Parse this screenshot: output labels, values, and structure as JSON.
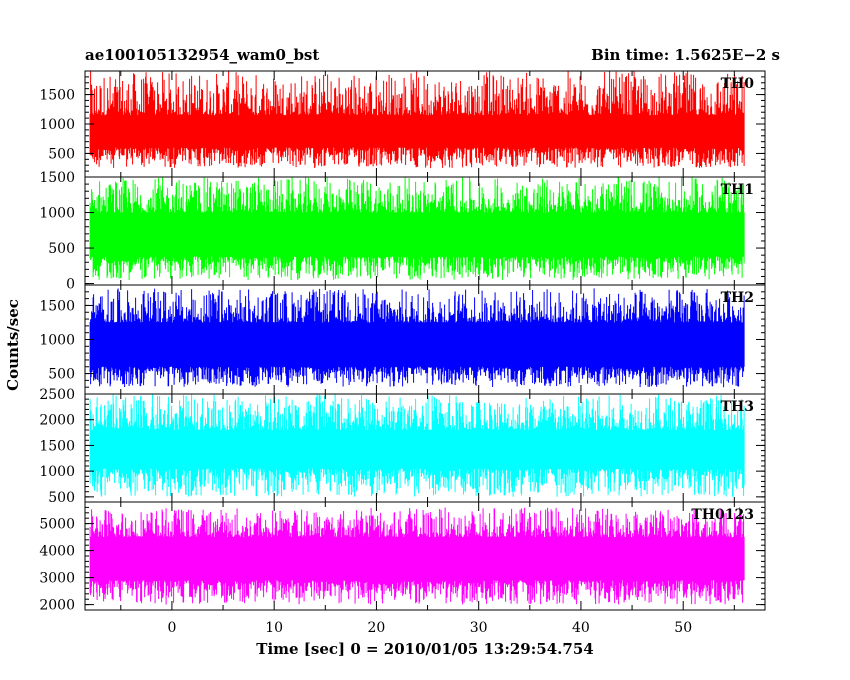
{
  "header": {
    "title_left": "ae100105132954_wam0_bst",
    "title_right": "Bin time: 1.5625E−2 s"
  },
  "chart_data": {
    "type": "line",
    "x": {
      "label": "Time [sec] 0 = 2010/01/05 13:29:54.754",
      "range": [
        -8.5,
        58
      ],
      "data_range": [
        -8,
        56
      ],
      "ticks": [
        0,
        10,
        20,
        30,
        40,
        50
      ],
      "tick_labels": [
        "0",
        "10",
        "20",
        "30",
        "40",
        "50"
      ]
    },
    "ylabel": "Counts/sec",
    "grid": false,
    "panels": [
      {
        "name": "TH0",
        "color": "#ff0000",
        "ylim": [
          100,
          1900
        ],
        "ticks": [
          500,
          1000,
          1500
        ],
        "tick_labels": [
          "500",
          "1000",
          "1500"
        ],
        "typical_low": 600,
        "typical_high": 1150,
        "min": 250,
        "max": 1900
      },
      {
        "name": "TH1",
        "color": "#00ff00",
        "ylim": [
          -20,
          1500
        ],
        "ticks": [
          0,
          500,
          1000,
          1500
        ],
        "tick_labels": [
          "0",
          "500",
          "1000",
          "1500"
        ],
        "typical_low": 380,
        "typical_high": 1000,
        "min": 50,
        "max": 1500
      },
      {
        "name": "TH2",
        "color": "#0000ff",
        "ylim": [
          200,
          1800
        ],
        "ticks": [
          500,
          1000,
          1500
        ],
        "tick_labels": [
          "500",
          "1000",
          "1500"
        ],
        "typical_low": 600,
        "typical_high": 1250,
        "min": 300,
        "max": 1750
      },
      {
        "name": "TH3",
        "color": "#00ffff",
        "ylim": [
          400,
          2500
        ],
        "ticks": [
          500,
          1000,
          1500,
          2000,
          2500
        ],
        "tick_labels": [
          "500",
          "1000",
          "1500",
          "2000",
          "2500"
        ],
        "typical_low": 1050,
        "typical_high": 1800,
        "min": 500,
        "max": 2500
      },
      {
        "name": "TH0123",
        "color": "#ff00ff",
        "ylim": [
          1800,
          5800
        ],
        "ticks": [
          2000,
          3000,
          4000,
          5000
        ],
        "tick_labels": [
          "2000",
          "3000",
          "4000",
          "5000"
        ],
        "typical_low": 2900,
        "typical_high": 4500,
        "min": 2000,
        "max": 5600
      }
    ]
  }
}
